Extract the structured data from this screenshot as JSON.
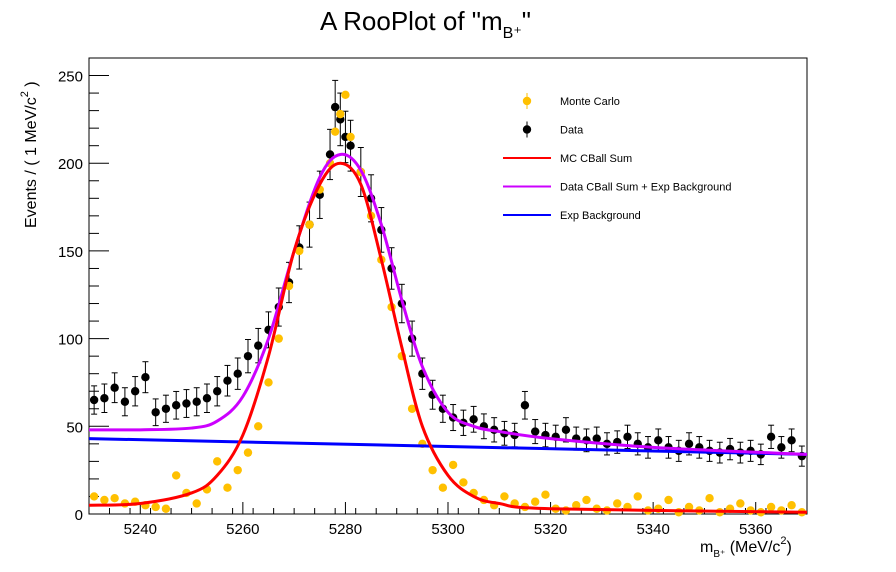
{
  "chart_data": {
    "type": "scatter",
    "title": "A RooPlot of \"m",
    "title_sub": "B⁺",
    "title_end": "\"",
    "ylabel_main": "Events / ( 1 MeV/c",
    "ylabel_sup": "2",
    "ylabel_end": " )",
    "xlabel_main": "m",
    "xlabel_sub": "B⁺",
    "xlabel_rest": " (MeV/c",
    "xlabel_sup": "2",
    "xlabel_end": ")",
    "xlim": [
      5230,
      5370
    ],
    "ylim": [
      0,
      260
    ],
    "x_ticks": [
      5240,
      5260,
      5280,
      5300,
      5320,
      5340,
      5360
    ],
    "x_tick_labels": [
      "5240",
      "5260",
      "5280",
      "5300",
      "5320",
      "5340",
      "5360"
    ],
    "y_ticks": [
      0,
      50,
      100,
      150,
      200,
      250
    ],
    "y_tick_labels": [
      "0",
      "50",
      "100",
      "150",
      "200",
      "250"
    ],
    "legend_position": "top-right",
    "legend": [
      {
        "label": "Monte Carlo",
        "kind": "marker",
        "color": "#ffc000"
      },
      {
        "label": "Data",
        "kind": "marker",
        "color": "#000000"
      },
      {
        "label": "MC CBall Sum",
        "kind": "line",
        "color": "#ff0000"
      },
      {
        "label": "Data CBall Sum + Exp Background",
        "kind": "line",
        "color": "#cc00ff"
      },
      {
        "label": "Exp Background",
        "kind": "line",
        "color": "#0000ff"
      }
    ],
    "series": [
      {
        "name": "Data",
        "kind": "points",
        "color": "#000000",
        "errorbars": true,
        "points": [
          [
            5231,
            65
          ],
          [
            5233,
            66
          ],
          [
            5235,
            72
          ],
          [
            5237,
            64
          ],
          [
            5239,
            70
          ],
          [
            5241,
            78
          ],
          [
            5243,
            58
          ],
          [
            5245,
            60
          ],
          [
            5247,
            62
          ],
          [
            5249,
            63
          ],
          [
            5251,
            64
          ],
          [
            5253,
            66
          ],
          [
            5255,
            70
          ],
          [
            5257,
            76
          ],
          [
            5259,
            80
          ],
          [
            5261,
            90
          ],
          [
            5263,
            96
          ],
          [
            5265,
            105
          ],
          [
            5267,
            118
          ],
          [
            5269,
            132
          ],
          [
            5271,
            152
          ],
          [
            5273,
            165
          ],
          [
            5275,
            182
          ],
          [
            5277,
            205
          ],
          [
            5278,
            232
          ],
          [
            5279,
            225
          ],
          [
            5280,
            215
          ],
          [
            5281,
            210
          ],
          [
            5283,
            195
          ],
          [
            5285,
            180
          ],
          [
            5287,
            162
          ],
          [
            5289,
            140
          ],
          [
            5291,
            120
          ],
          [
            5293,
            100
          ],
          [
            5295,
            80
          ],
          [
            5297,
            68
          ],
          [
            5299,
            60
          ],
          [
            5301,
            55
          ],
          [
            5303,
            52
          ],
          [
            5305,
            54
          ],
          [
            5307,
            50
          ],
          [
            5309,
            48
          ],
          [
            5311,
            46
          ],
          [
            5313,
            45
          ],
          [
            5315,
            62
          ],
          [
            5317,
            47
          ],
          [
            5319,
            45
          ],
          [
            5321,
            44
          ],
          [
            5323,
            48
          ],
          [
            5325,
            43
          ],
          [
            5327,
            42
          ],
          [
            5329,
            43
          ],
          [
            5331,
            40
          ],
          [
            5333,
            41
          ],
          [
            5335,
            44
          ],
          [
            5337,
            40
          ],
          [
            5339,
            38
          ],
          [
            5341,
            42
          ],
          [
            5343,
            38
          ],
          [
            5345,
            36
          ],
          [
            5347,
            40
          ],
          [
            5349,
            38
          ],
          [
            5351,
            36
          ],
          [
            5353,
            35
          ],
          [
            5355,
            37
          ],
          [
            5357,
            35
          ],
          [
            5359,
            36
          ],
          [
            5361,
            34
          ],
          [
            5363,
            44
          ],
          [
            5365,
            38
          ],
          [
            5367,
            42
          ],
          [
            5369,
            33
          ]
        ]
      },
      {
        "name": "Monte Carlo",
        "kind": "points",
        "color": "#ffc000",
        "errorbars": false,
        "points": [
          [
            5231,
            10
          ],
          [
            5233,
            8
          ],
          [
            5235,
            9
          ],
          [
            5237,
            6
          ],
          [
            5239,
            7
          ],
          [
            5241,
            5
          ],
          [
            5243,
            4
          ],
          [
            5245,
            3
          ],
          [
            5247,
            22
          ],
          [
            5249,
            12
          ],
          [
            5251,
            6
          ],
          [
            5253,
            14
          ],
          [
            5255,
            30
          ],
          [
            5257,
            15
          ],
          [
            5259,
            25
          ],
          [
            5261,
            35
          ],
          [
            5263,
            50
          ],
          [
            5265,
            75
          ],
          [
            5267,
            100
          ],
          [
            5269,
            130
          ],
          [
            5271,
            150
          ],
          [
            5273,
            165
          ],
          [
            5275,
            185
          ],
          [
            5277,
            200
          ],
          [
            5278,
            218
          ],
          [
            5279,
            228
          ],
          [
            5280,
            239
          ],
          [
            5281,
            215
          ],
          [
            5283,
            195
          ],
          [
            5285,
            170
          ],
          [
            5287,
            145
          ],
          [
            5289,
            118
          ],
          [
            5291,
            90
          ],
          [
            5293,
            60
          ],
          [
            5295,
            40
          ],
          [
            5297,
            25
          ],
          [
            5299,
            15
          ],
          [
            5301,
            28
          ],
          [
            5303,
            18
          ],
          [
            5305,
            12
          ],
          [
            5307,
            8
          ],
          [
            5309,
            5
          ],
          [
            5311,
            10
          ],
          [
            5313,
            6
          ],
          [
            5315,
            4
          ],
          [
            5317,
            7
          ],
          [
            5319,
            11
          ],
          [
            5321,
            3
          ],
          [
            5323,
            2
          ],
          [
            5325,
            5
          ],
          [
            5327,
            8
          ],
          [
            5329,
            3
          ],
          [
            5331,
            2
          ],
          [
            5333,
            6
          ],
          [
            5335,
            4
          ],
          [
            5337,
            10
          ],
          [
            5339,
            2
          ],
          [
            5341,
            3
          ],
          [
            5343,
            8
          ],
          [
            5345,
            1
          ],
          [
            5347,
            4
          ],
          [
            5349,
            2
          ],
          [
            5351,
            9
          ],
          [
            5353,
            1
          ],
          [
            5355,
            3
          ],
          [
            5357,
            6
          ],
          [
            5359,
            2
          ],
          [
            5361,
            1
          ],
          [
            5363,
            4
          ],
          [
            5365,
            2
          ],
          [
            5367,
            5
          ],
          [
            5369,
            1
          ]
        ]
      },
      {
        "name": "Exp Background",
        "kind": "curve",
        "color": "#0000ff",
        "points": [
          [
            5230,
            43
          ],
          [
            5370,
            34
          ]
        ]
      },
      {
        "name": "Data CBall Sum + Exp Background",
        "kind": "curve",
        "color": "#cc00ff",
        "points": [
          [
            5230,
            48
          ],
          [
            5240,
            48
          ],
          [
            5250,
            49
          ],
          [
            5255,
            53
          ],
          [
            5260,
            67
          ],
          [
            5265,
            100
          ],
          [
            5270,
            150
          ],
          [
            5275,
            192
          ],
          [
            5279,
            205
          ],
          [
            5283,
            196
          ],
          [
            5287,
            165
          ],
          [
            5291,
            122
          ],
          [
            5295,
            84
          ],
          [
            5300,
            58
          ],
          [
            5305,
            50
          ],
          [
            5310,
            47
          ],
          [
            5320,
            43
          ],
          [
            5340,
            38
          ],
          [
            5370,
            34
          ]
        ]
      },
      {
        "name": "MC CBall Sum",
        "kind": "curve",
        "color": "#ff0000",
        "points": [
          [
            5230,
            5
          ],
          [
            5240,
            6
          ],
          [
            5250,
            12
          ],
          [
            5255,
            22
          ],
          [
            5260,
            45
          ],
          [
            5265,
            90
          ],
          [
            5270,
            150
          ],
          [
            5275,
            188
          ],
          [
            5279,
            200
          ],
          [
            5283,
            188
          ],
          [
            5287,
            145
          ],
          [
            5291,
            95
          ],
          [
            5295,
            50
          ],
          [
            5300,
            22
          ],
          [
            5305,
            10
          ],
          [
            5310,
            6
          ],
          [
            5320,
            3
          ],
          [
            5370,
            1
          ]
        ]
      }
    ]
  }
}
